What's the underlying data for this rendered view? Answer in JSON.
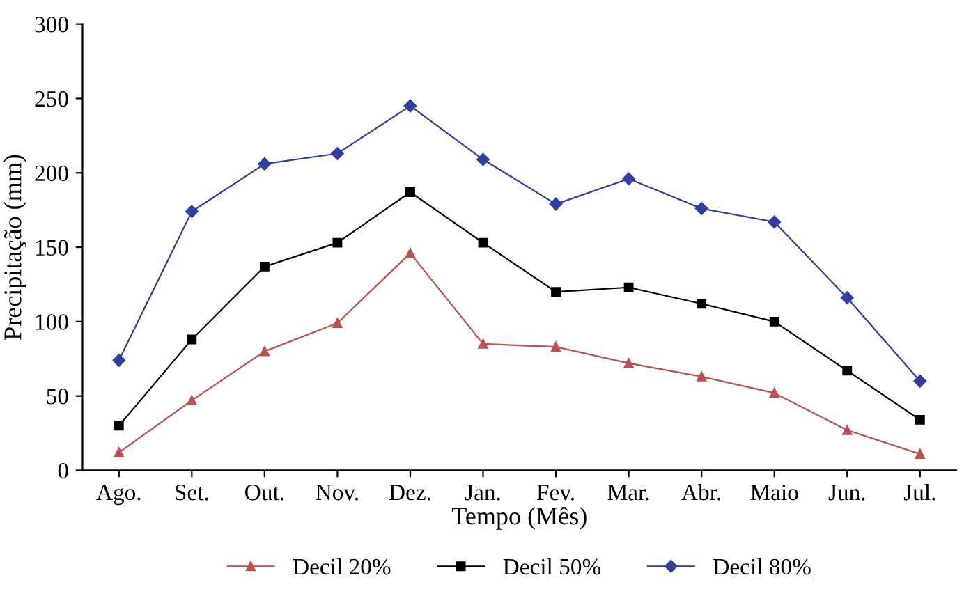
{
  "chart_data": {
    "type": "line",
    "xlabel": "Tempo (Mês)",
    "ylabel": "Precipitação (mm)",
    "categories": [
      "Ago.",
      "Set.",
      "Out.",
      "Nov.",
      "Dez.",
      "Jan.",
      "Fev.",
      "Mar.",
      "Abr.",
      "Maio",
      "Jun.",
      "Jul."
    ],
    "series": [
      {
        "name": "Decil 20%",
        "color": "#c0504d",
        "marker": "triangle",
        "values": [
          12,
          47,
          80,
          99,
          146,
          85,
          83,
          72,
          63,
          52,
          27,
          11
        ]
      },
      {
        "name": "Decil 50%",
        "color": "#000000",
        "marker": "square",
        "values": [
          30,
          88,
          137,
          153,
          187,
          153,
          120,
          123,
          112,
          100,
          67,
          34
        ]
      },
      {
        "name": "Decil 80%",
        "color": "#2e3fa0",
        "marker": "diamond",
        "values": [
          74,
          174,
          206,
          213,
          245,
          209,
          179,
          196,
          176,
          167,
          116,
          60
        ]
      }
    ],
    "ylim": [
      0,
      300
    ],
    "yticks": [
      0,
      50,
      100,
      150,
      200,
      250,
      300
    ],
    "grid": false,
    "legend": "bottom",
    "line_style": "solid"
  }
}
